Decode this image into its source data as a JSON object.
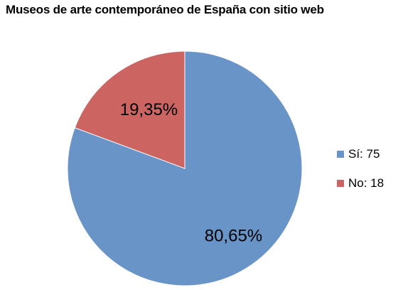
{
  "chart_data": {
    "type": "pie",
    "title": "Museos de arte contemporáneo de España con sitio web",
    "series": [
      {
        "name": "Sí",
        "value": 75,
        "label": "80,65%",
        "legend": "Sí: 75",
        "color": "#6994C8"
      },
      {
        "name": "No",
        "value": 18,
        "label": "19,35%",
        "legend": "No: 18",
        "color": "#CC6461"
      }
    ],
    "legend_position": "right"
  }
}
